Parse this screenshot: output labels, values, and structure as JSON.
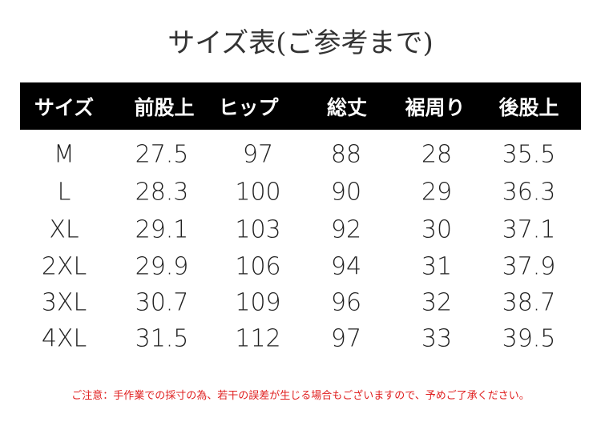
{
  "title": "サイズ表(ご参考まで)",
  "table": {
    "header": [
      "サイズ",
      "前股上",
      "ヒップ",
      "総丈",
      "裾周り",
      "後股上"
    ],
    "rows": [
      [
        "M",
        "27.5",
        "97",
        "88",
        "28",
        "35.5"
      ],
      [
        "L",
        "28.3",
        "100",
        "90",
        "29",
        "36.3"
      ],
      [
        "XL",
        "29.1",
        "103",
        "92",
        "30",
        "37.1"
      ],
      [
        "2XL",
        "29.9",
        "106",
        "94",
        "31",
        "37.9"
      ],
      [
        "3XL",
        "30.7",
        "109",
        "96",
        "32",
        "38.7"
      ],
      [
        "4XL",
        "31.5",
        "112",
        "97",
        "33",
        "39.5"
      ]
    ]
  },
  "note": "ご注意：手作業での採寸の為、若干の誤差が生じる場合もございますので、予めご了承ください。"
}
